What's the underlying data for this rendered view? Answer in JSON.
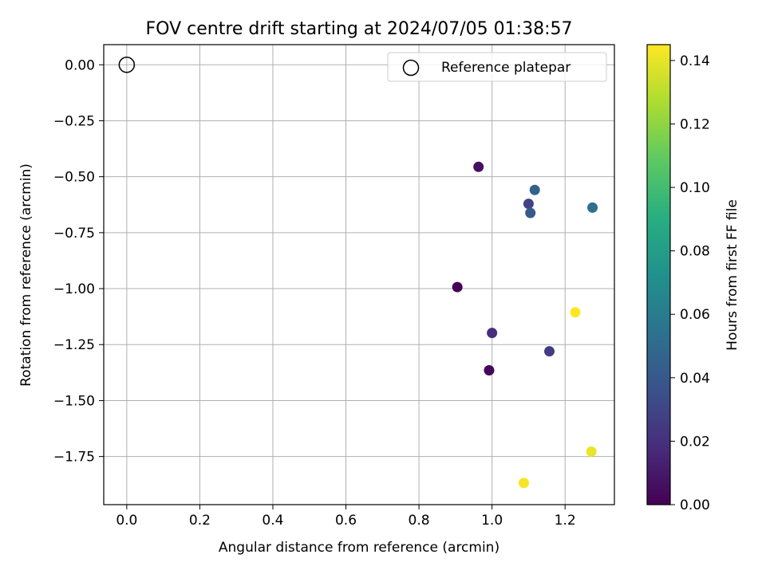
{
  "chart_data": {
    "type": "scatter",
    "title": "FOV centre drift starting at 2024/07/05 01:38:57",
    "xlabel": "Angular distance from reference (arcmin)",
    "ylabel": "Rotation from reference (arcmin)",
    "xlim": [
      -0.063,
      1.335
    ],
    "ylim": [
      -1.965,
      0.09
    ],
    "xticks": [
      0.0,
      0.2,
      0.4,
      0.6,
      0.8,
      1.0,
      1.2
    ],
    "xtick_labels": [
      "0.0",
      "0.2",
      "0.4",
      "0.6",
      "0.8",
      "1.0",
      "1.2"
    ],
    "yticks": [
      0.0,
      -0.25,
      -0.5,
      -0.75,
      -1.0,
      -1.25,
      -1.5,
      -1.75
    ],
    "ytick_labels": [
      "0.00",
      "−0.25",
      "−0.50",
      "−0.75",
      "−1.00",
      "−1.25",
      "−1.50",
      "−1.75"
    ],
    "grid": true,
    "legend": {
      "entries": [
        "Reference platepar"
      ],
      "placement": "top-right"
    },
    "reference_point": {
      "x": 0.0,
      "y": 0.0,
      "marker": "open-circle"
    },
    "colorbar": {
      "label": "Hours from first FF file",
      "colormap": "viridis",
      "range": [
        0.0,
        0.145
      ],
      "ticks": [
        0.0,
        0.02,
        0.04,
        0.06,
        0.08,
        0.1,
        0.12,
        0.14
      ],
      "tick_labels": [
        "0.00",
        "0.02",
        "0.04",
        "0.06",
        "0.08",
        "0.10",
        "0.12",
        "0.14"
      ]
    },
    "points": [
      {
        "x": 0.905,
        "y": -0.993,
        "hours": 0.0
      },
      {
        "x": 0.992,
        "y": -1.365,
        "hours": 0.002
      },
      {
        "x": 0.963,
        "y": -0.456,
        "hours": 0.006
      },
      {
        "x": 1.0,
        "y": -1.198,
        "hours": 0.018
      },
      {
        "x": 1.157,
        "y": -1.28,
        "hours": 0.026
      },
      {
        "x": 1.1,
        "y": -0.621,
        "hours": 0.03
      },
      {
        "x": 1.105,
        "y": -0.662,
        "hours": 0.041
      },
      {
        "x": 1.117,
        "y": -0.559,
        "hours": 0.046
      },
      {
        "x": 1.275,
        "y": -0.638,
        "hours": 0.052
      },
      {
        "x": 1.228,
        "y": -1.106,
        "hours": 0.145
      },
      {
        "x": 1.272,
        "y": -1.728,
        "hours": 0.141
      },
      {
        "x": 1.087,
        "y": -1.868,
        "hours": 0.143
      }
    ]
  }
}
